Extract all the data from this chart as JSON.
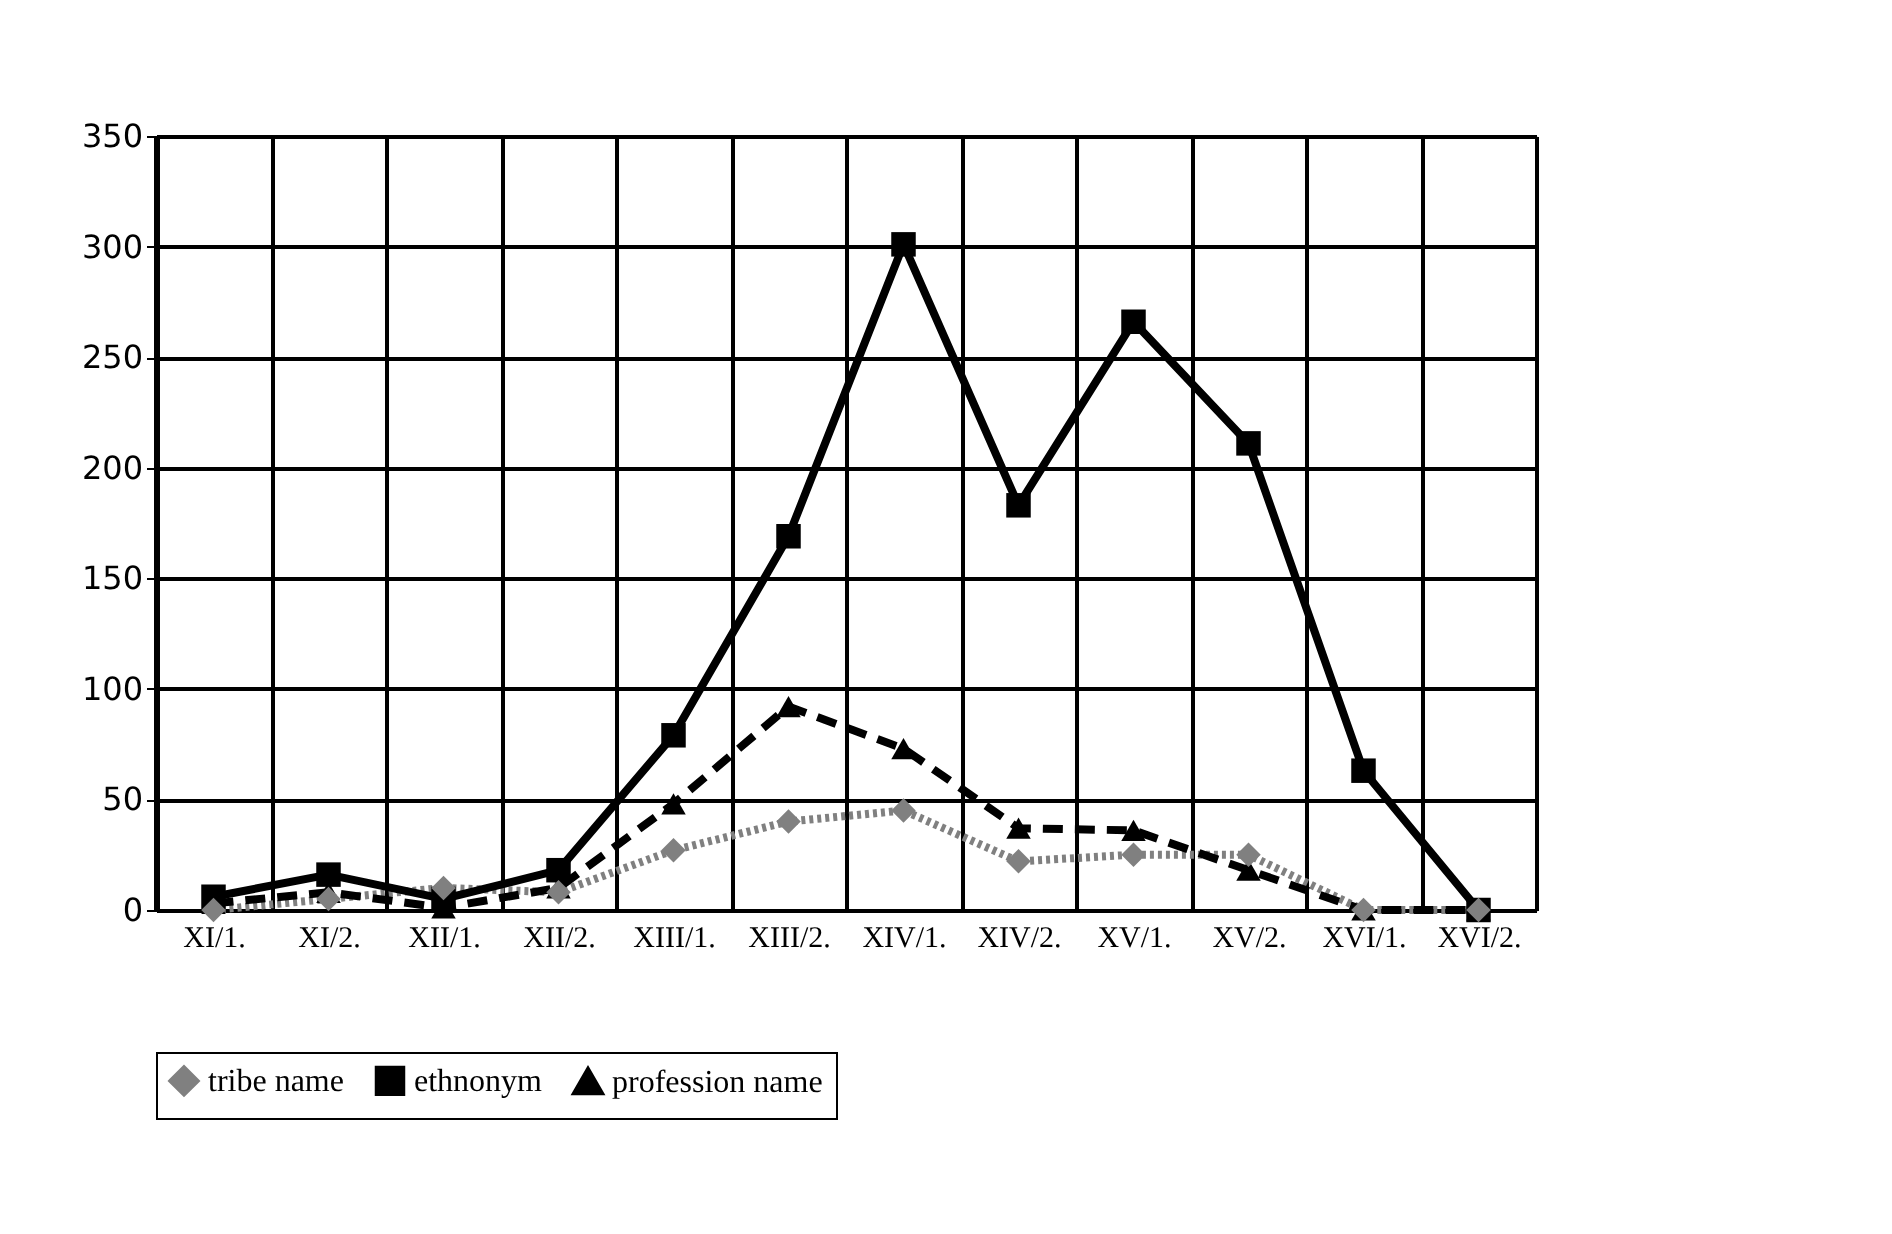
{
  "chart_data": {
    "type": "line",
    "categories": [
      "XI/1.",
      "XI/2.",
      "XII/1.",
      "XII/2.",
      "XIII/1.",
      "XIII/2.",
      "XIV/1.",
      "XIV/2.",
      "XV/1.",
      "XV/2.",
      "XVI/1.",
      "XVI/2."
    ],
    "series": [
      {
        "name": "tribe name",
        "color": "#808080",
        "marker": "diamond",
        "line_style": "dotted",
        "values": [
          0,
          5,
          10,
          8,
          27,
          40,
          45,
          22,
          25,
          25,
          0,
          0
        ]
      },
      {
        "name": "ethnonym",
        "color": "#000000",
        "marker": "square",
        "line_style": "solid",
        "values": [
          6,
          16,
          5,
          18,
          79,
          169,
          301,
          183,
          266,
          211,
          63,
          0
        ]
      },
      {
        "name": "profession name",
        "color": "#000000",
        "marker": "triangle",
        "line_style": "dashed",
        "values": [
          3,
          8,
          1,
          10,
          48,
          92,
          73,
          37,
          36,
          18,
          0,
          0
        ]
      }
    ],
    "ylim": [
      0,
      350
    ],
    "yticks": [
      0,
      50,
      100,
      150,
      200,
      250,
      300,
      350
    ],
    "grid": true,
    "legend": "bottom"
  }
}
